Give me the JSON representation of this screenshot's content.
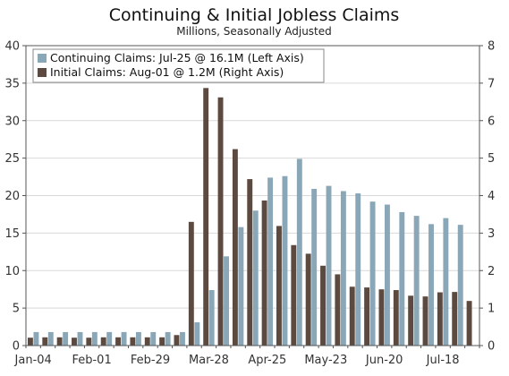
{
  "chart_data": {
    "type": "bar",
    "title": "Continuing & Initial Jobless Claims",
    "subtitle": "Millions, Seasonally Adjusted",
    "x_tick_labels": [
      "Jan-04",
      "Feb-01",
      "Feb-29",
      "Mar-28",
      "Apr-25",
      "May-23",
      "Jun-20",
      "Jul-18"
    ],
    "x_tick_index": [
      0,
      4,
      8,
      12,
      16,
      20,
      24,
      28
    ],
    "left_axis": {
      "ylim": [
        0,
        40
      ],
      "ticks": [
        0,
        5,
        10,
        15,
        20,
        25,
        30,
        35,
        40
      ]
    },
    "right_axis": {
      "ylim": [
        0,
        8
      ],
      "ticks": [
        0,
        1,
        2,
        3,
        4,
        5,
        6,
        7,
        8
      ]
    },
    "legend": {
      "position": "top-left"
    },
    "series": [
      {
        "name": "Continuing Claims: Jul-25 @ 16.1M (Left Axis)",
        "axis": "left",
        "color": "#8aa7b8",
        "values": [
          1.8,
          1.8,
          1.8,
          1.8,
          1.8,
          1.8,
          1.8,
          1.8,
          1.8,
          1.8,
          1.8,
          3.1,
          7.4,
          11.9,
          15.8,
          18.0,
          22.4,
          22.6,
          24.9,
          20.9,
          21.3,
          20.6,
          20.3,
          19.2,
          18.8,
          17.8,
          17.3,
          16.2,
          17.0,
          16.1,
          null
        ]
      },
      {
        "name": "Initial Claims: Aug-01 @ 1.2M (Right Axis)",
        "axis": "right",
        "color": "#5c4a40",
        "values": [
          0.21,
          0.22,
          0.22,
          0.21,
          0.21,
          0.22,
          0.22,
          0.22,
          0.22,
          0.22,
          0.28,
          3.3,
          6.87,
          6.62,
          5.24,
          4.44,
          3.87,
          3.19,
          2.68,
          2.45,
          2.13,
          1.9,
          1.57,
          1.55,
          1.5,
          1.48,
          1.33,
          1.31,
          1.42,
          1.43,
          1.19
        ]
      }
    ]
  }
}
